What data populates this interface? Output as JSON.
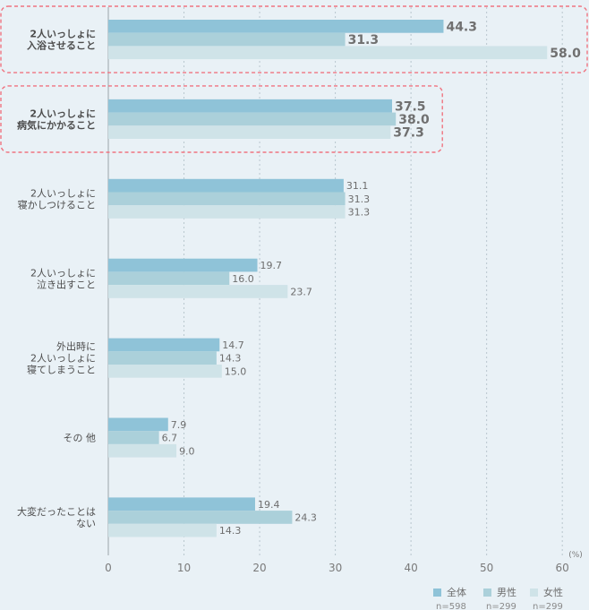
{
  "chart_data": {
    "type": "bar",
    "orientation": "horizontal",
    "categories": [
      [
        "2人いっしょに",
        "入浴させること"
      ],
      [
        "2人いっしょに",
        "病気にかかること"
      ],
      [
        "2人いっしょに",
        "寝かしつけること"
      ],
      [
        "2人いっしょに",
        "泣き出すこと"
      ],
      [
        "外出時に",
        "2人いっしょに",
        "寝てしまうこと"
      ],
      [
        "その 他"
      ],
      [
        "大変だったことは",
        "ない"
      ]
    ],
    "series": [
      {
        "name": "全体",
        "n": "n=598",
        "color": "#8fc3d8",
        "values": [
          44.3,
          37.5,
          31.1,
          19.7,
          14.7,
          7.9,
          19.4
        ]
      },
      {
        "name": "男性",
        "n": "n=299",
        "color": "#abd0da",
        "values": [
          31.3,
          38.0,
          31.3,
          16.0,
          14.3,
          6.7,
          24.3
        ]
      },
      {
        "name": "女性",
        "n": "n=299",
        "color": "#cfe3e8",
        "values": [
          58.0,
          37.3,
          31.3,
          23.7,
          15.0,
          9.0,
          14.3
        ]
      }
    ],
    "value_labels": [
      [
        "44.3",
        "31.3",
        "58.0"
      ],
      [
        "37.5",
        "38.0",
        "37.3"
      ],
      [
        "31.1",
        "31.3",
        "31.3"
      ],
      [
        "19.7",
        "16.0",
        "23.7"
      ],
      [
        "14.7",
        "14.3",
        "15.0"
      ],
      [
        "7.9",
        "6.7",
        "9.0"
      ],
      [
        "19.4",
        "24.3",
        "14.3"
      ]
    ],
    "highlighted_categories": [
      0,
      1
    ],
    "xlim": [
      0,
      60
    ],
    "xticks": [
      "0",
      "10",
      "20",
      "30",
      "40",
      "50",
      "60"
    ],
    "unit": "(%)",
    "grid": true,
    "legend_position": "bottom-right"
  }
}
